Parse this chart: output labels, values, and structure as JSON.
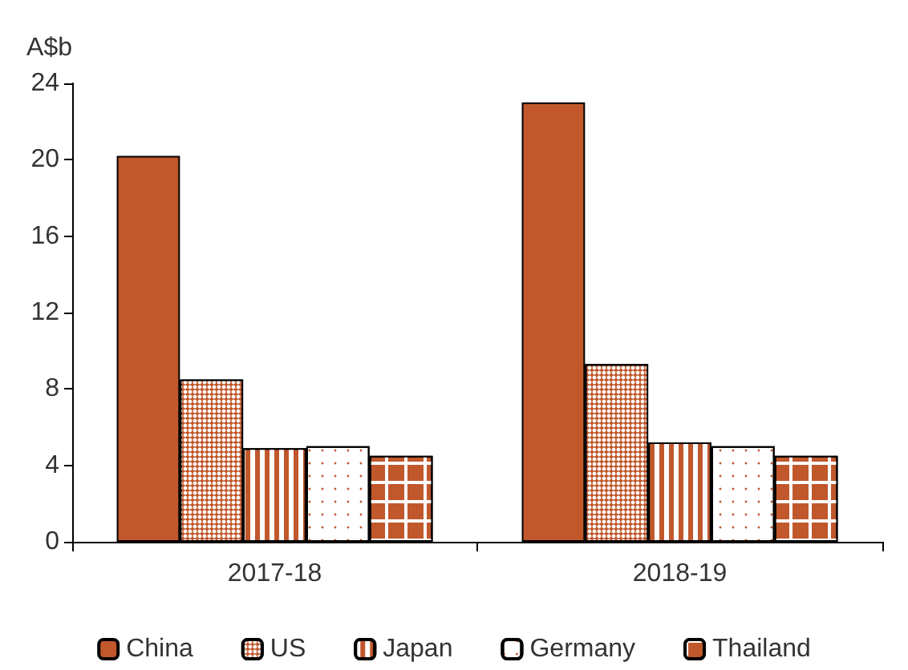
{
  "chart_data": {
    "type": "bar",
    "ylabel": "A$b",
    "categories": [
      "2017-18",
      "2018-19"
    ],
    "series": [
      {
        "name": "China",
        "color": "#c0582c",
        "values": [
          20.2,
          23.0
        ]
      },
      {
        "name": "US",
        "color": "#c0582c",
        "values": [
          8.5,
          9.3
        ]
      },
      {
        "name": "Japan",
        "color": "#c0582c",
        "values": [
          4.9,
          5.2
        ]
      },
      {
        "name": "Germany",
        "color": "#ffffff",
        "values": [
          5.0,
          5.0
        ]
      },
      {
        "name": "Thailand",
        "color": "#c0582c",
        "values": [
          4.5,
          4.5
        ]
      }
    ],
    "ylim": [
      0,
      24
    ],
    "yticks": [
      0,
      4,
      8,
      12,
      16,
      20,
      24
    ],
    "grid": false,
    "legend": "bottom"
  }
}
